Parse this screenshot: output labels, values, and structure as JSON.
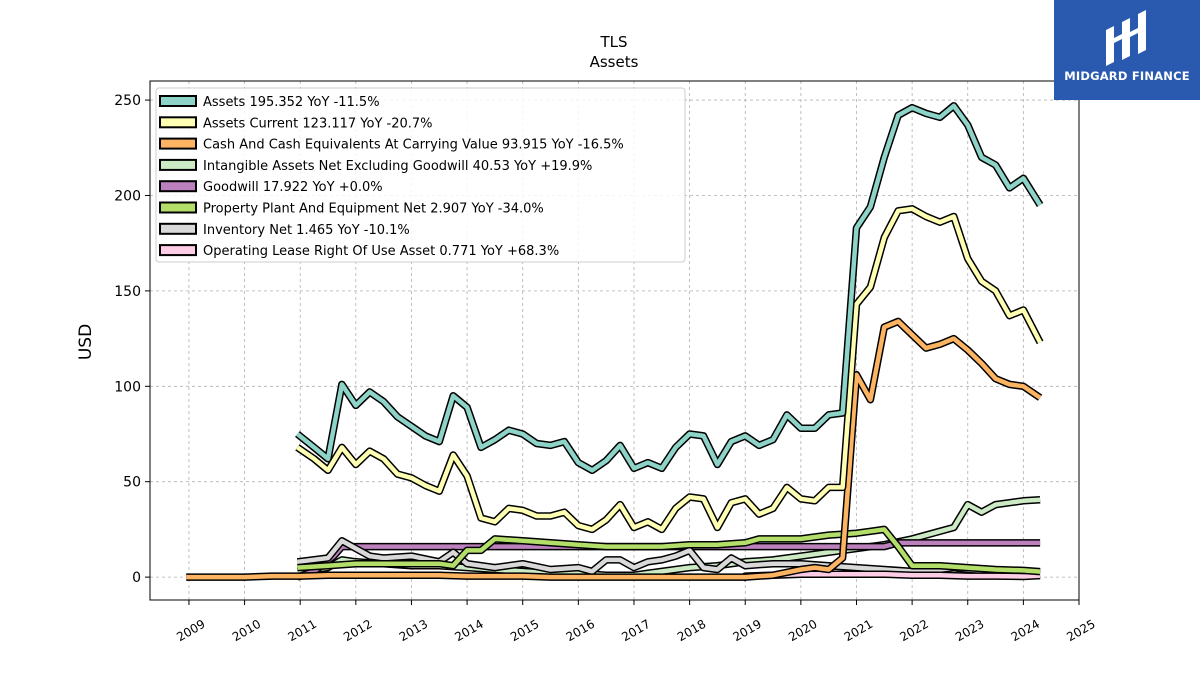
{
  "brand": {
    "name": "MIDGARD FINANCE",
    "bg": "#2a5ab0",
    "icon": "midgard-logo-icon"
  },
  "chart_data": {
    "type": "line",
    "title": "TLS",
    "subtitle": "Assets",
    "ylabel": "USD",
    "xlabel": "",
    "xlim": [
      2008.3,
      2025.0
    ],
    "ylim": [
      -12,
      260
    ],
    "x_ticks": [
      "2009",
      "2010",
      "2011",
      "2012",
      "2013",
      "2014",
      "2015",
      "2016",
      "2017",
      "2018",
      "2019",
      "2020",
      "2021",
      "2022",
      "2023",
      "2024",
      "2025"
    ],
    "y_ticks": [
      0,
      50,
      100,
      150,
      200,
      250
    ],
    "grid": true,
    "legend_position": "top-left",
    "series": [
      {
        "name": "Assets",
        "legend": "Assets  195.352 YoY -11.5%",
        "color": "#8dd3c7",
        "points": [
          [
            2010.95,
            75
          ],
          [
            2011.25,
            68
          ],
          [
            2011.5,
            62
          ],
          [
            2011.75,
            101
          ],
          [
            2012.0,
            90
          ],
          [
            2012.25,
            97
          ],
          [
            2012.5,
            92
          ],
          [
            2012.75,
            84
          ],
          [
            2013.0,
            79
          ],
          [
            2013.25,
            74
          ],
          [
            2013.5,
            71
          ],
          [
            2013.75,
            95
          ],
          [
            2014.0,
            89
          ],
          [
            2014.25,
            68
          ],
          [
            2014.5,
            72
          ],
          [
            2014.75,
            77
          ],
          [
            2015.0,
            75
          ],
          [
            2015.25,
            70
          ],
          [
            2015.5,
            69
          ],
          [
            2015.75,
            71
          ],
          [
            2016.0,
            60
          ],
          [
            2016.25,
            56
          ],
          [
            2016.5,
            61
          ],
          [
            2016.75,
            69
          ],
          [
            2017.0,
            57
          ],
          [
            2017.25,
            60
          ],
          [
            2017.5,
            57
          ],
          [
            2017.75,
            68
          ],
          [
            2018.0,
            75
          ],
          [
            2018.25,
            74
          ],
          [
            2018.5,
            59
          ],
          [
            2018.75,
            71
          ],
          [
            2019.0,
            74
          ],
          [
            2019.25,
            69
          ],
          [
            2019.5,
            72
          ],
          [
            2019.75,
            85
          ],
          [
            2020.0,
            78
          ],
          [
            2020.25,
            78
          ],
          [
            2020.5,
            85
          ],
          [
            2020.75,
            86
          ],
          [
            2021.0,
            183
          ],
          [
            2021.25,
            194
          ],
          [
            2021.5,
            220
          ],
          [
            2021.75,
            242
          ],
          [
            2022.0,
            246
          ],
          [
            2022.25,
            243
          ],
          [
            2022.5,
            241
          ],
          [
            2022.75,
            247
          ],
          [
            2023.0,
            237
          ],
          [
            2023.25,
            220
          ],
          [
            2023.5,
            216
          ],
          [
            2023.75,
            204
          ],
          [
            2024.0,
            209
          ],
          [
            2024.3,
            195
          ]
        ]
      },
      {
        "name": "Assets Current",
        "legend": "Assets Current  123.117 YoY -20.7%",
        "color": "#ffffb3",
        "points": [
          [
            2010.95,
            68
          ],
          [
            2011.25,
            62
          ],
          [
            2011.5,
            56
          ],
          [
            2011.75,
            68
          ],
          [
            2012.0,
            59
          ],
          [
            2012.25,
            66
          ],
          [
            2012.5,
            62
          ],
          [
            2012.75,
            54
          ],
          [
            2013.0,
            52
          ],
          [
            2013.25,
            48
          ],
          [
            2013.5,
            45
          ],
          [
            2013.75,
            64
          ],
          [
            2014.0,
            53
          ],
          [
            2014.25,
            31
          ],
          [
            2014.5,
            29
          ],
          [
            2014.75,
            36
          ],
          [
            2015.0,
            35
          ],
          [
            2015.25,
            32
          ],
          [
            2015.5,
            32
          ],
          [
            2015.75,
            34
          ],
          [
            2016.0,
            27
          ],
          [
            2016.25,
            25
          ],
          [
            2016.5,
            30
          ],
          [
            2016.75,
            38
          ],
          [
            2017.0,
            26
          ],
          [
            2017.25,
            29
          ],
          [
            2017.5,
            25
          ],
          [
            2017.75,
            36
          ],
          [
            2018.0,
            42
          ],
          [
            2018.25,
            41
          ],
          [
            2018.5,
            26
          ],
          [
            2018.75,
            39
          ],
          [
            2019.0,
            41
          ],
          [
            2019.25,
            33
          ],
          [
            2019.5,
            36
          ],
          [
            2019.75,
            47
          ],
          [
            2020.0,
            41
          ],
          [
            2020.25,
            40
          ],
          [
            2020.5,
            47
          ],
          [
            2020.75,
            47
          ],
          [
            2021.0,
            143
          ],
          [
            2021.25,
            152
          ],
          [
            2021.5,
            178
          ],
          [
            2021.75,
            192
          ],
          [
            2022.0,
            193
          ],
          [
            2022.25,
            189
          ],
          [
            2022.5,
            186
          ],
          [
            2022.75,
            189
          ],
          [
            2023.0,
            167
          ],
          [
            2023.25,
            155
          ],
          [
            2023.5,
            150
          ],
          [
            2023.75,
            137
          ],
          [
            2024.0,
            140
          ],
          [
            2024.3,
            123
          ]
        ]
      },
      {
        "name": "Cash And Cash Equivalents At Carrying Value",
        "legend": "Cash And Cash Equivalents At Carrying Value  93.915 YoY -16.5%",
        "color": "#fdb462",
        "points": [
          [
            2008.95,
            0
          ],
          [
            2009.5,
            0
          ],
          [
            2010.0,
            0
          ],
          [
            2010.5,
            0.5
          ],
          [
            2011.0,
            0.5
          ],
          [
            2011.5,
            1
          ],
          [
            2012.0,
            1
          ],
          [
            2012.5,
            1
          ],
          [
            2013.0,
            1
          ],
          [
            2013.5,
            1
          ],
          [
            2014.0,
            0.5
          ],
          [
            2014.5,
            0.5
          ],
          [
            2015.0,
            0.5
          ],
          [
            2015.5,
            0
          ],
          [
            2016.0,
            0
          ],
          [
            2016.5,
            0
          ],
          [
            2017.0,
            0
          ],
          [
            2017.5,
            0
          ],
          [
            2018.0,
            0
          ],
          [
            2018.5,
            0
          ],
          [
            2019.0,
            0
          ],
          [
            2019.5,
            1
          ],
          [
            2020.0,
            4
          ],
          [
            2020.25,
            5
          ],
          [
            2020.5,
            4
          ],
          [
            2020.75,
            10
          ],
          [
            2021.0,
            106
          ],
          [
            2021.25,
            93
          ],
          [
            2021.5,
            131
          ],
          [
            2021.75,
            134
          ],
          [
            2022.0,
            127
          ],
          [
            2022.25,
            120
          ],
          [
            2022.5,
            122
          ],
          [
            2022.75,
            125
          ],
          [
            2023.0,
            119
          ],
          [
            2023.25,
            112
          ],
          [
            2023.5,
            104
          ],
          [
            2023.75,
            101
          ],
          [
            2024.0,
            100
          ],
          [
            2024.3,
            94
          ]
        ]
      },
      {
        "name": "Intangible Assets Net Excluding Goodwill",
        "legend": "Intangible Assets Net Excluding Goodwill  40.53 YoY +19.9%",
        "color": "#ccebc5",
        "points": [
          [
            2010.95,
            3
          ],
          [
            2011.5,
            5
          ],
          [
            2011.75,
            9
          ],
          [
            2012.0,
            8
          ],
          [
            2012.5,
            7
          ],
          [
            2013.0,
            6
          ],
          [
            2013.5,
            6
          ],
          [
            2014.0,
            5
          ],
          [
            2014.5,
            4
          ],
          [
            2015.0,
            3
          ],
          [
            2015.5,
            2
          ],
          [
            2016.0,
            2
          ],
          [
            2016.5,
            1
          ],
          [
            2017.0,
            1
          ],
          [
            2017.5,
            3
          ],
          [
            2018.0,
            5
          ],
          [
            2018.5,
            6
          ],
          [
            2019.0,
            8
          ],
          [
            2019.5,
            9
          ],
          [
            2020.0,
            11
          ],
          [
            2020.5,
            13
          ],
          [
            2021.0,
            15
          ],
          [
            2021.5,
            17
          ],
          [
            2022.0,
            20
          ],
          [
            2022.5,
            24
          ],
          [
            2022.75,
            26
          ],
          [
            2023.0,
            38
          ],
          [
            2023.25,
            34
          ],
          [
            2023.5,
            38
          ],
          [
            2023.75,
            39
          ],
          [
            2024.0,
            40
          ],
          [
            2024.3,
            40.5
          ]
        ]
      },
      {
        "name": "Goodwill",
        "legend": "Goodwill  17.922 YoY +0.0%",
        "color": "#bc80bd",
        "points": [
          [
            2010.95,
            0
          ],
          [
            2011.25,
            3
          ],
          [
            2011.6,
            11
          ],
          [
            2011.75,
            16
          ],
          [
            2012.0,
            16
          ],
          [
            2013.0,
            16
          ],
          [
            2014.0,
            16
          ],
          [
            2015.0,
            16
          ],
          [
            2016.0,
            16
          ],
          [
            2017.0,
            16
          ],
          [
            2018.0,
            16
          ],
          [
            2019.0,
            16
          ],
          [
            2020.0,
            16
          ],
          [
            2021.0,
            16
          ],
          [
            2021.5,
            16
          ],
          [
            2021.75,
            17.9
          ],
          [
            2022.0,
            17.9
          ],
          [
            2023.0,
            17.9
          ],
          [
            2024.3,
            17.9
          ]
        ]
      },
      {
        "name": "Property Plant And Equipment Net",
        "legend": "Property Plant And Equipment Net  2.907 YoY -34.0%",
        "color": "#b3de69",
        "points": [
          [
            2010.95,
            5
          ],
          [
            2011.5,
            6
          ],
          [
            2012.0,
            7
          ],
          [
            2012.5,
            7
          ],
          [
            2013.0,
            7
          ],
          [
            2013.5,
            7
          ],
          [
            2013.75,
            6
          ],
          [
            2014.0,
            14
          ],
          [
            2014.25,
            14
          ],
          [
            2014.5,
            20
          ],
          [
            2015.0,
            19
          ],
          [
            2015.5,
            18
          ],
          [
            2016.0,
            17
          ],
          [
            2016.5,
            16
          ],
          [
            2017.0,
            16
          ],
          [
            2017.5,
            16
          ],
          [
            2018.0,
            17
          ],
          [
            2018.5,
            17
          ],
          [
            2019.0,
            18
          ],
          [
            2019.25,
            20
          ],
          [
            2019.5,
            20
          ],
          [
            2020.0,
            20
          ],
          [
            2020.5,
            22
          ],
          [
            2021.0,
            23
          ],
          [
            2021.25,
            24
          ],
          [
            2021.5,
            25
          ],
          [
            2021.75,
            16
          ],
          [
            2022.0,
            6
          ],
          [
            2022.5,
            6
          ],
          [
            2023.0,
            5
          ],
          [
            2023.5,
            4
          ],
          [
            2024.0,
            3.5
          ],
          [
            2024.3,
            2.9
          ]
        ]
      },
      {
        "name": "Inventory Net",
        "legend": "Inventory Net  1.465 YoY -10.1%",
        "color": "#d9d9d9",
        "points": [
          [
            2010.95,
            8
          ],
          [
            2011.5,
            10
          ],
          [
            2011.75,
            19
          ],
          [
            2012.0,
            15
          ],
          [
            2012.25,
            11
          ],
          [
            2012.5,
            10
          ],
          [
            2013.0,
            11
          ],
          [
            2013.5,
            8
          ],
          [
            2013.75,
            13
          ],
          [
            2014.0,
            7
          ],
          [
            2014.5,
            5
          ],
          [
            2015.0,
            7
          ],
          [
            2015.5,
            4
          ],
          [
            2016.0,
            5
          ],
          [
            2016.25,
            3
          ],
          [
            2016.5,
            9
          ],
          [
            2016.75,
            9
          ],
          [
            2017.0,
            5
          ],
          [
            2017.25,
            8
          ],
          [
            2017.5,
            9
          ],
          [
            2017.75,
            11
          ],
          [
            2018.0,
            14
          ],
          [
            2018.25,
            5
          ],
          [
            2018.5,
            4
          ],
          [
            2018.75,
            10
          ],
          [
            2019.0,
            6
          ],
          [
            2019.5,
            7
          ],
          [
            2020.0,
            7
          ],
          [
            2020.5,
            6
          ],
          [
            2021.0,
            5
          ],
          [
            2021.5,
            4
          ],
          [
            2022.0,
            3
          ],
          [
            2022.5,
            4
          ],
          [
            2022.75,
            5
          ],
          [
            2023.0,
            4
          ],
          [
            2023.5,
            3
          ],
          [
            2024.0,
            2
          ],
          [
            2024.3,
            1.5
          ]
        ]
      },
      {
        "name": "Operating Lease Right Of Use Asset",
        "legend": "Operating Lease Right Of Use Asset  0.771 YoY +68.3%",
        "color": "#fccde5",
        "points": [
          [
            2018.95,
            -1
          ],
          [
            2019.0,
            0.5
          ],
          [
            2019.5,
            1
          ],
          [
            2020.0,
            1.5
          ],
          [
            2020.5,
            1.5
          ],
          [
            2021.0,
            1.5
          ],
          [
            2021.5,
            1.5
          ],
          [
            2022.0,
            1
          ],
          [
            2022.5,
            1
          ],
          [
            2023.0,
            0.5
          ],
          [
            2023.5,
            0.5
          ],
          [
            2024.0,
            0.3
          ],
          [
            2024.3,
            0.77
          ]
        ]
      }
    ]
  }
}
